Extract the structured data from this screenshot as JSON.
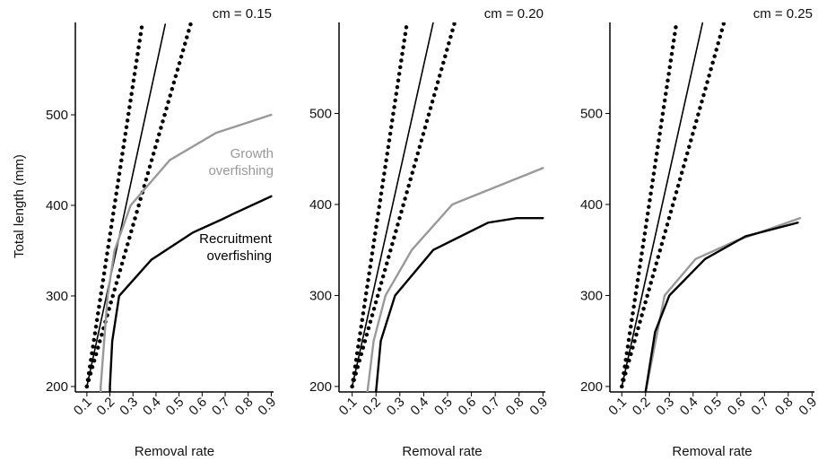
{
  "chart_data": [
    {
      "type": "line",
      "title": "cm = 0.15",
      "x_label": "Removal rate",
      "y_label": "Total length (mm)",
      "xlim": [
        0.05,
        0.91
      ],
      "ylim": [
        194,
        602
      ],
      "xticks": [
        0.1,
        0.2,
        0.3,
        0.4,
        0.5,
        0.6,
        0.7,
        0.8,
        0.9
      ],
      "yticks": [
        200,
        300,
        400,
        500
      ],
      "series": [
        {
          "style": "dotted",
          "color": "#000000",
          "x": [
            0.1,
            0.34
          ],
          "values": [
            200,
            600
          ]
        },
        {
          "style": "solid",
          "color": "#000000",
          "x": [
            0.1,
            0.44
          ],
          "values": [
            200,
            600
          ]
        },
        {
          "style": "dotted",
          "color": "#000000",
          "x": [
            0.1,
            0.55
          ],
          "values": [
            200,
            600
          ]
        },
        {
          "name": "Growth overfishing",
          "style": "solid",
          "color": "#999999",
          "x": [
            0.16,
            0.16,
            0.19,
            0.22,
            0.29,
            0.46,
            0.66,
            0.9
          ],
          "values": [
            194,
            200,
            300,
            350,
            400,
            450,
            480,
            500
          ]
        },
        {
          "name": "Recruitment overfishing",
          "style": "solid",
          "color": "#000000",
          "x": [
            0.2,
            0.2,
            0.21,
            0.24,
            0.38,
            0.56,
            0.69,
            0.73,
            0.9
          ],
          "values": [
            194,
            200,
            250,
            300,
            340,
            370,
            385,
            390,
            410
          ]
        }
      ]
    },
    {
      "type": "line",
      "title": "cm = 0.20",
      "x_label": "Removal rate",
      "xlim": [
        0.045,
        0.91
      ],
      "ylim": [
        194,
        600
      ],
      "xticks": [
        0.1,
        0.2,
        0.3,
        0.4,
        0.5,
        0.6,
        0.7,
        0.8,
        0.9
      ],
      "yticks": [
        200,
        300,
        400,
        500
      ],
      "series": [
        {
          "style": "dotted",
          "color": "#000000",
          "x": [
            0.1,
            0.33
          ],
          "values": [
            200,
            600
          ]
        },
        {
          "style": "solid",
          "color": "#000000",
          "x": [
            0.1,
            0.44
          ],
          "values": [
            200,
            600
          ]
        },
        {
          "style": "dotted",
          "color": "#000000",
          "x": [
            0.1,
            0.53
          ],
          "values": [
            200,
            600
          ]
        },
        {
          "style": "solid",
          "color": "#999999",
          "x": [
            0.164,
            0.19,
            0.24,
            0.35,
            0.52,
            0.9
          ],
          "values": [
            194,
            250,
            300,
            350,
            400,
            440
          ]
        },
        {
          "style": "solid",
          "color": "#000000",
          "x": [
            0.2,
            0.22,
            0.28,
            0.44,
            0.67,
            0.79,
            0.9
          ],
          "values": [
            194,
            250,
            300,
            350,
            380,
            385,
            385
          ]
        }
      ]
    },
    {
      "type": "line",
      "title": "cm = 0.25",
      "x_label": "Removal rate",
      "xlim": [
        0.05,
        0.91
      ],
      "ylim": [
        194,
        600
      ],
      "xticks": [
        0.1,
        0.2,
        0.3,
        0.4,
        0.5,
        0.6,
        0.7,
        0.8,
        0.9
      ],
      "yticks": [
        200,
        300,
        400,
        500
      ],
      "series": [
        {
          "style": "dotted",
          "color": "#000000",
          "x": [
            0.1,
            0.33
          ],
          "values": [
            200,
            600
          ]
        },
        {
          "style": "solid",
          "color": "#000000",
          "x": [
            0.1,
            0.44
          ],
          "values": [
            200,
            600
          ]
        },
        {
          "style": "dotted",
          "color": "#000000",
          "x": [
            0.1,
            0.53
          ],
          "values": [
            200,
            600
          ]
        },
        {
          "style": "solid",
          "color": "#999999",
          "x": [
            0.2,
            0.28,
            0.41,
            0.58,
            0.85
          ],
          "values": [
            194,
            300,
            340,
            360,
            385
          ]
        },
        {
          "style": "solid",
          "color": "#000000",
          "x": [
            0.2,
            0.24,
            0.3,
            0.45,
            0.62,
            0.84
          ],
          "values": [
            194,
            260,
            300,
            340,
            365,
            380
          ]
        }
      ]
    }
  ]
}
